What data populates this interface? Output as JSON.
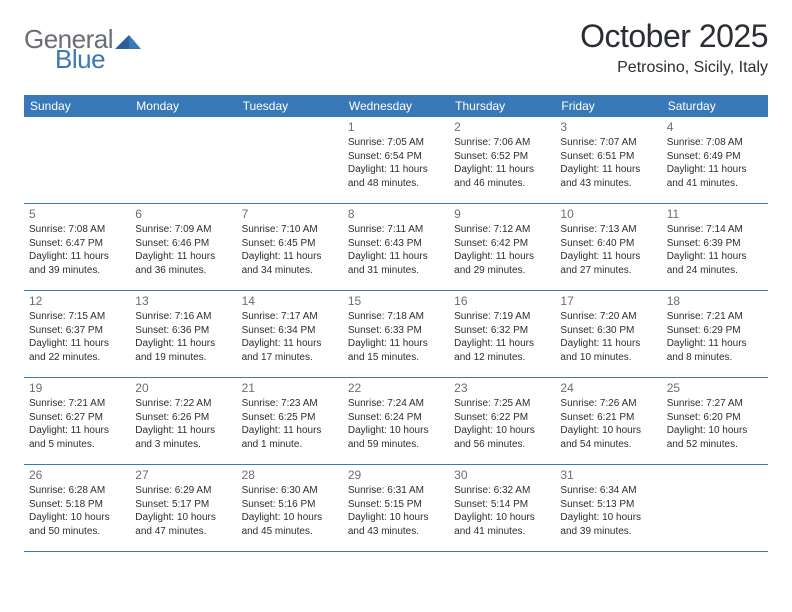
{
  "brand": {
    "part1": "General",
    "part2": "Blue"
  },
  "title": "October 2025",
  "location": "Petrosino, Sicily, Italy",
  "colors": {
    "header_bg": "#3a79b7",
    "rule": "#3a79b7",
    "text": "#2b2e33",
    "muted": "#6b6e72",
    "white": "#ffffff"
  },
  "dow": [
    "Sunday",
    "Monday",
    "Tuesday",
    "Wednesday",
    "Thursday",
    "Friday",
    "Saturday"
  ],
  "weeks": [
    [
      {
        "n": "",
        "sunrise": "",
        "sunset": "",
        "daylight": ""
      },
      {
        "n": "",
        "sunrise": "",
        "sunset": "",
        "daylight": ""
      },
      {
        "n": "",
        "sunrise": "",
        "sunset": "",
        "daylight": ""
      },
      {
        "n": "1",
        "sunrise": "Sunrise: 7:05 AM",
        "sunset": "Sunset: 6:54 PM",
        "daylight": "Daylight: 11 hours and 48 minutes."
      },
      {
        "n": "2",
        "sunrise": "Sunrise: 7:06 AM",
        "sunset": "Sunset: 6:52 PM",
        "daylight": "Daylight: 11 hours and 46 minutes."
      },
      {
        "n": "3",
        "sunrise": "Sunrise: 7:07 AM",
        "sunset": "Sunset: 6:51 PM",
        "daylight": "Daylight: 11 hours and 43 minutes."
      },
      {
        "n": "4",
        "sunrise": "Sunrise: 7:08 AM",
        "sunset": "Sunset: 6:49 PM",
        "daylight": "Daylight: 11 hours and 41 minutes."
      }
    ],
    [
      {
        "n": "5",
        "sunrise": "Sunrise: 7:08 AM",
        "sunset": "Sunset: 6:47 PM",
        "daylight": "Daylight: 11 hours and 39 minutes."
      },
      {
        "n": "6",
        "sunrise": "Sunrise: 7:09 AM",
        "sunset": "Sunset: 6:46 PM",
        "daylight": "Daylight: 11 hours and 36 minutes."
      },
      {
        "n": "7",
        "sunrise": "Sunrise: 7:10 AM",
        "sunset": "Sunset: 6:45 PM",
        "daylight": "Daylight: 11 hours and 34 minutes."
      },
      {
        "n": "8",
        "sunrise": "Sunrise: 7:11 AM",
        "sunset": "Sunset: 6:43 PM",
        "daylight": "Daylight: 11 hours and 31 minutes."
      },
      {
        "n": "9",
        "sunrise": "Sunrise: 7:12 AM",
        "sunset": "Sunset: 6:42 PM",
        "daylight": "Daylight: 11 hours and 29 minutes."
      },
      {
        "n": "10",
        "sunrise": "Sunrise: 7:13 AM",
        "sunset": "Sunset: 6:40 PM",
        "daylight": "Daylight: 11 hours and 27 minutes."
      },
      {
        "n": "11",
        "sunrise": "Sunrise: 7:14 AM",
        "sunset": "Sunset: 6:39 PM",
        "daylight": "Daylight: 11 hours and 24 minutes."
      }
    ],
    [
      {
        "n": "12",
        "sunrise": "Sunrise: 7:15 AM",
        "sunset": "Sunset: 6:37 PM",
        "daylight": "Daylight: 11 hours and 22 minutes."
      },
      {
        "n": "13",
        "sunrise": "Sunrise: 7:16 AM",
        "sunset": "Sunset: 6:36 PM",
        "daylight": "Daylight: 11 hours and 19 minutes."
      },
      {
        "n": "14",
        "sunrise": "Sunrise: 7:17 AM",
        "sunset": "Sunset: 6:34 PM",
        "daylight": "Daylight: 11 hours and 17 minutes."
      },
      {
        "n": "15",
        "sunrise": "Sunrise: 7:18 AM",
        "sunset": "Sunset: 6:33 PM",
        "daylight": "Daylight: 11 hours and 15 minutes."
      },
      {
        "n": "16",
        "sunrise": "Sunrise: 7:19 AM",
        "sunset": "Sunset: 6:32 PM",
        "daylight": "Daylight: 11 hours and 12 minutes."
      },
      {
        "n": "17",
        "sunrise": "Sunrise: 7:20 AM",
        "sunset": "Sunset: 6:30 PM",
        "daylight": "Daylight: 11 hours and 10 minutes."
      },
      {
        "n": "18",
        "sunrise": "Sunrise: 7:21 AM",
        "sunset": "Sunset: 6:29 PM",
        "daylight": "Daylight: 11 hours and 8 minutes."
      }
    ],
    [
      {
        "n": "19",
        "sunrise": "Sunrise: 7:21 AM",
        "sunset": "Sunset: 6:27 PM",
        "daylight": "Daylight: 11 hours and 5 minutes."
      },
      {
        "n": "20",
        "sunrise": "Sunrise: 7:22 AM",
        "sunset": "Sunset: 6:26 PM",
        "daylight": "Daylight: 11 hours and 3 minutes."
      },
      {
        "n": "21",
        "sunrise": "Sunrise: 7:23 AM",
        "sunset": "Sunset: 6:25 PM",
        "daylight": "Daylight: 11 hours and 1 minute."
      },
      {
        "n": "22",
        "sunrise": "Sunrise: 7:24 AM",
        "sunset": "Sunset: 6:24 PM",
        "daylight": "Daylight: 10 hours and 59 minutes."
      },
      {
        "n": "23",
        "sunrise": "Sunrise: 7:25 AM",
        "sunset": "Sunset: 6:22 PM",
        "daylight": "Daylight: 10 hours and 56 minutes."
      },
      {
        "n": "24",
        "sunrise": "Sunrise: 7:26 AM",
        "sunset": "Sunset: 6:21 PM",
        "daylight": "Daylight: 10 hours and 54 minutes."
      },
      {
        "n": "25",
        "sunrise": "Sunrise: 7:27 AM",
        "sunset": "Sunset: 6:20 PM",
        "daylight": "Daylight: 10 hours and 52 minutes."
      }
    ],
    [
      {
        "n": "26",
        "sunrise": "Sunrise: 6:28 AM",
        "sunset": "Sunset: 5:18 PM",
        "daylight": "Daylight: 10 hours and 50 minutes."
      },
      {
        "n": "27",
        "sunrise": "Sunrise: 6:29 AM",
        "sunset": "Sunset: 5:17 PM",
        "daylight": "Daylight: 10 hours and 47 minutes."
      },
      {
        "n": "28",
        "sunrise": "Sunrise: 6:30 AM",
        "sunset": "Sunset: 5:16 PM",
        "daylight": "Daylight: 10 hours and 45 minutes."
      },
      {
        "n": "29",
        "sunrise": "Sunrise: 6:31 AM",
        "sunset": "Sunset: 5:15 PM",
        "daylight": "Daylight: 10 hours and 43 minutes."
      },
      {
        "n": "30",
        "sunrise": "Sunrise: 6:32 AM",
        "sunset": "Sunset: 5:14 PM",
        "daylight": "Daylight: 10 hours and 41 minutes."
      },
      {
        "n": "31",
        "sunrise": "Sunrise: 6:34 AM",
        "sunset": "Sunset: 5:13 PM",
        "daylight": "Daylight: 10 hours and 39 minutes."
      },
      {
        "n": "",
        "sunrise": "",
        "sunset": "",
        "daylight": ""
      }
    ]
  ]
}
